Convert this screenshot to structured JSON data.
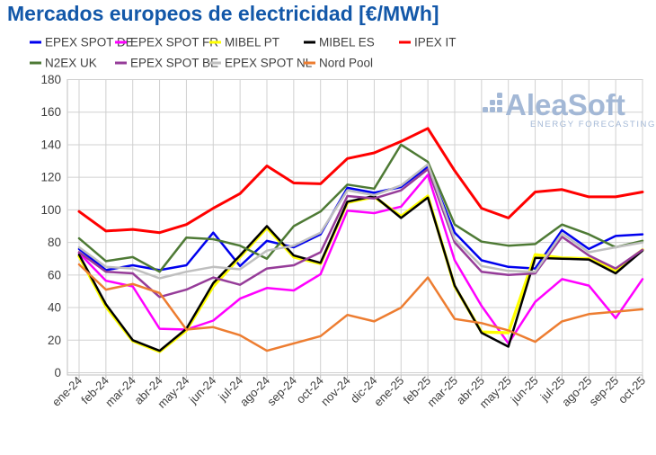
{
  "chart_data": {
    "type": "line",
    "title": "Mercados europeos de electricidad [€/MWh]",
    "xlabel": "",
    "ylabel": "",
    "ylim": [
      0,
      180
    ],
    "yticks": [
      0,
      20,
      40,
      60,
      80,
      100,
      120,
      140,
      160,
      180
    ],
    "grid": true,
    "legend_position": "top",
    "x_categories": [
      "ene-24",
      "feb-24",
      "mar-24",
      "abr-24",
      "may-24",
      "jun-24",
      "jul-24",
      "ago-24",
      "sep-24",
      "oct-24",
      "nov-24",
      "dic-24",
      "ene-25",
      "feb-25",
      "mar-25",
      "abr-25",
      "may-25",
      "jun-25",
      "jul-25",
      "ago-25",
      "sep-25",
      "oct-25"
    ],
    "series": [
      {
        "name": "EPEX SPOT DE",
        "color": "#0000ee",
        "values": [
          76,
          63,
          66,
          63,
          66,
          86,
          65.5,
          81,
          77,
          85,
          113.5,
          110.5,
          114,
          126.5,
          86,
          69,
          65,
          64,
          87.5,
          76,
          84,
          85
        ]
      },
      {
        "name": "EPEX SPOT FR",
        "color": "#ff00ff",
        "values": [
          73.5,
          56.5,
          53,
          27,
          26.5,
          32,
          45.5,
          52,
          50.5,
          60.5,
          99.5,
          98,
          102,
          121.5,
          69,
          41,
          18,
          43.5,
          57.5,
          53.5,
          33.5,
          57.5
        ]
      },
      {
        "name": "MIBEL PT",
        "color": "#ffff00",
        "values": [
          71.5,
          40.5,
          19.5,
          13,
          26,
          53,
          71,
          89,
          71,
          67,
          104.5,
          108,
          96,
          108.5,
          53,
          25,
          24.5,
          72.5,
          70.5,
          70,
          63,
          75.5
        ]
      },
      {
        "name": "MIBEL ES",
        "color": "#000000",
        "values": [
          72.5,
          42,
          20,
          13.5,
          27,
          55,
          72,
          90,
          72,
          67.5,
          105,
          108.5,
          95,
          107.5,
          53.5,
          24.5,
          16,
          70.5,
          70,
          69.5,
          61,
          75
        ]
      },
      {
        "name": "IPEX IT",
        "color": "#ff0000",
        "values": [
          99,
          87,
          88,
          86,
          91,
          101,
          110,
          127,
          116.5,
          116,
          131.5,
          135,
          142,
          150,
          124,
          101,
          95,
          111,
          112.5,
          108,
          108,
          111
        ]
      },
      {
        "name": "N2EX UK",
        "color": "#4e7a35",
        "values": [
          82.5,
          68.5,
          71,
          62,
          83,
          82,
          78,
          70,
          90,
          99,
          115.5,
          113,
          140,
          129.5,
          91,
          80.5,
          78,
          79,
          91,
          85,
          77,
          81
        ]
      },
      {
        "name": "EPEX SPOT BE",
        "color": "#963c99",
        "values": [
          74,
          62,
          61,
          46.5,
          51,
          58.5,
          54,
          64,
          66,
          74,
          108.5,
          107,
          112,
          125,
          80,
          62,
          60,
          61,
          83.5,
          72,
          64,
          75.5
        ]
      },
      {
        "name": "EPEX SPOT NL",
        "color": "#bfbfbf",
        "values": [
          77,
          65,
          64,
          58,
          62,
          65,
          63.5,
          75,
          78,
          86,
          112,
          109,
          115,
          128,
          82,
          65.5,
          62.5,
          62,
          85.5,
          74,
          77,
          80
        ]
      },
      {
        "name": "Nord Pool",
        "color": "#ed7d31",
        "values": [
          66.5,
          51,
          54.5,
          49,
          26.5,
          28,
          23,
          13.5,
          18,
          22.5,
          35.5,
          31.5,
          40,
          58.5,
          33,
          30.5,
          26,
          19,
          31.5,
          36,
          37.5,
          39
        ]
      }
    ],
    "watermark": {
      "text": "AleaSoft",
      "subtext": "ENERGY FORECASTING",
      "color": "#a3b8d6"
    }
  }
}
